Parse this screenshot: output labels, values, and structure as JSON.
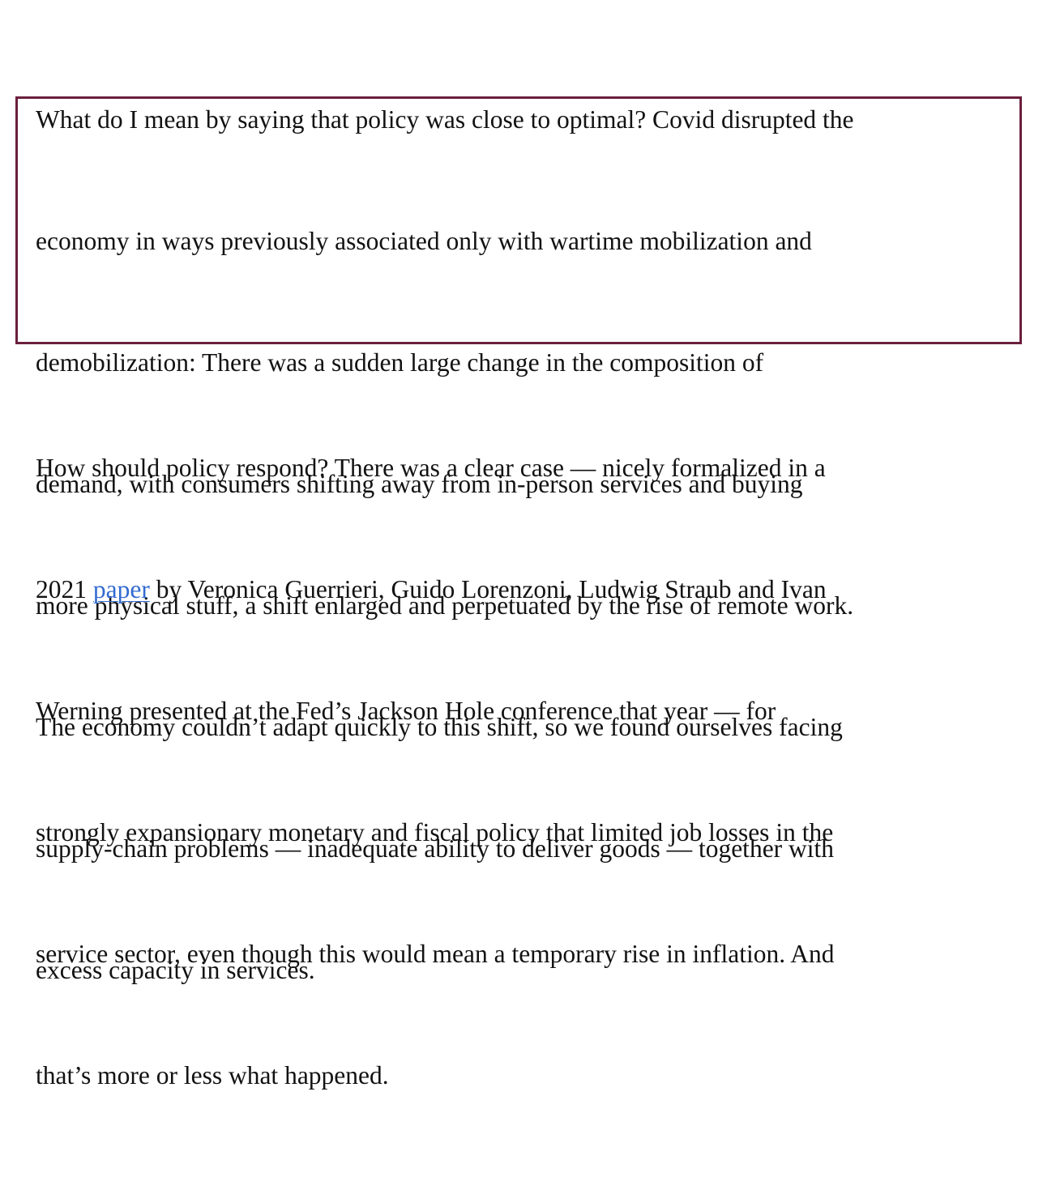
{
  "paragraph_1": {
    "lines": [
      "What do I mean by saying that policy was close to optimal? Covid disrupted the",
      "economy in ways previously associated only with wartime mobilization and",
      "demobilization: There was a sudden large change in the composition of",
      "demand, with consumers shifting away from in-person services and buying",
      "more physical stuff, a shift enlarged and perpetuated by the rise of remote work.",
      "The economy couldn’t adapt quickly to this shift, so we found ourselves facing",
      "supply-chain problems — inadequate ability to deliver goods — together with",
      "excess capacity in services."
    ]
  },
  "paragraph_2": {
    "line_1": "How should policy respond? There was a clear case — nicely formalized in a",
    "line_2_before_link": "2021 ",
    "link_text": "paper",
    "line_2_after_link": " by Veronica Guerrieri, Guido Lorenzoni, Ludwig Straub and Ivan",
    "line_3": "Werning presented at the Fed’s Jackson Hole conference that year — for",
    "line_4": "strongly expansionary monetary and fiscal policy that limited job losses in the",
    "line_5": "service sector, even though this would mean a temporary rise in inflation. And",
    "line_6": "that’s more or less what happened."
  },
  "colors": {
    "highlight_border": "#6b1f3d",
    "link": "#326bd1",
    "text": "#121212"
  }
}
